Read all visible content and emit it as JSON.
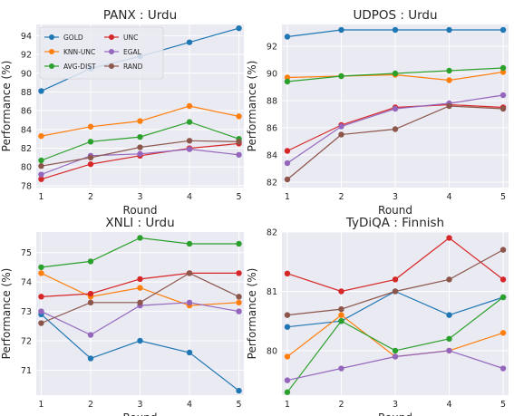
{
  "chart_data": [
    {
      "type": "line",
      "title": "PANX : Urdu",
      "xlabel": "Round",
      "ylabel": "Performance (%)",
      "x": [
        1,
        2,
        3,
        4,
        5
      ],
      "ylim": [
        77.8,
        95.2
      ],
      "yticks": [
        78,
        80,
        82,
        84,
        86,
        88,
        90,
        92,
        94
      ],
      "grid": true,
      "legend": "top-left",
      "series": [
        {
          "name": "GOLD",
          "color": "#1f77b4",
          "values": [
            88.1,
            90.5,
            91.8,
            93.3,
            94.8
          ]
        },
        {
          "name": "KNN-UNC",
          "color": "#ff7f0e",
          "values": [
            83.3,
            84.3,
            84.9,
            86.5,
            85.4
          ]
        },
        {
          "name": "AVG-DIST",
          "color": "#2ca02c",
          "values": [
            80.7,
            82.7,
            83.2,
            84.8,
            83.0
          ]
        },
        {
          "name": "UNC",
          "color": "#d62728",
          "values": [
            78.7,
            80.3,
            81.2,
            82.0,
            82.5
          ]
        },
        {
          "name": "EGAL",
          "color": "#9467bd",
          "values": [
            79.2,
            81.2,
            81.4,
            81.9,
            81.3
          ]
        },
        {
          "name": "RAND",
          "color": "#8c564b",
          "values": [
            80.1,
            81.0,
            82.1,
            82.8,
            82.7
          ]
        }
      ]
    },
    {
      "type": "line",
      "title": "UDPOS : Urdu",
      "xlabel": "Round",
      "ylabel": "Performance (%)",
      "x": [
        1,
        2,
        3,
        4,
        5
      ],
      "ylim": [
        81.6,
        93.6
      ],
      "yticks": [
        82,
        84,
        86,
        88,
        90,
        92
      ],
      "grid": true,
      "series": [
        {
          "name": "GOLD",
          "color": "#1f77b4",
          "values": [
            92.7,
            93.2,
            93.2,
            93.2,
            93.2
          ]
        },
        {
          "name": "KNN-UNC",
          "color": "#ff7f0e",
          "values": [
            89.7,
            89.8,
            89.9,
            89.5,
            90.1
          ]
        },
        {
          "name": "AVG-DIST",
          "color": "#2ca02c",
          "values": [
            89.4,
            89.8,
            90.0,
            90.2,
            90.4
          ]
        },
        {
          "name": "UNC",
          "color": "#d62728",
          "values": [
            84.3,
            86.2,
            87.5,
            87.7,
            87.5
          ]
        },
        {
          "name": "EGAL",
          "color": "#9467bd",
          "values": [
            83.4,
            86.1,
            87.4,
            87.8,
            88.4
          ]
        },
        {
          "name": "RAND",
          "color": "#8c564b",
          "values": [
            82.2,
            85.5,
            85.9,
            87.6,
            87.4
          ]
        }
      ]
    },
    {
      "type": "line",
      "title": "XNLI : Urdu",
      "xlabel": "Round",
      "ylabel": "Performance (%)",
      "x": [
        1,
        2,
        3,
        4,
        5
      ],
      "ylim": [
        70.15,
        75.7
      ],
      "yticks": [
        71,
        72,
        73,
        74,
        75
      ],
      "grid": true,
      "series": [
        {
          "name": "GOLD",
          "color": "#1f77b4",
          "values": [
            72.9,
            71.4,
            72.0,
            71.6,
            70.3
          ]
        },
        {
          "name": "KNN-UNC",
          "color": "#ff7f0e",
          "values": [
            74.3,
            73.5,
            73.8,
            73.2,
            73.3
          ]
        },
        {
          "name": "AVG-DIST",
          "color": "#2ca02c",
          "values": [
            74.5,
            74.7,
            75.5,
            75.3,
            75.3
          ]
        },
        {
          "name": "UNC",
          "color": "#d62728",
          "values": [
            73.5,
            73.6,
            74.1,
            74.3,
            74.3
          ]
        },
        {
          "name": "EGAL",
          "color": "#9467bd",
          "values": [
            73.0,
            72.2,
            73.2,
            73.3,
            73.0
          ]
        },
        {
          "name": "RAND",
          "color": "#8c564b",
          "values": [
            72.6,
            73.3,
            73.3,
            74.3,
            73.5
          ]
        }
      ]
    },
    {
      "type": "line",
      "title": "TyDiQA : Finnish",
      "xlabel": "Round",
      "ylabel": "Performance (%)",
      "x": [
        1,
        2,
        3,
        4,
        5
      ],
      "ylim": [
        79.25,
        82.0
      ],
      "yticks": [
        80,
        81,
        82
      ],
      "grid": true,
      "series": [
        {
          "name": "GOLD",
          "color": "#1f77b4",
          "values": [
            80.4,
            80.5,
            81.0,
            80.6,
            80.9
          ]
        },
        {
          "name": "KNN-UNC",
          "color": "#ff7f0e",
          "values": [
            79.9,
            80.6,
            79.9,
            80.0,
            80.3
          ]
        },
        {
          "name": "AVG-DIST",
          "color": "#2ca02c",
          "values": [
            79.3,
            80.5,
            80.0,
            80.2,
            80.9
          ]
        },
        {
          "name": "UNC",
          "color": "#d62728",
          "values": [
            81.3,
            81.0,
            81.2,
            81.9,
            81.2
          ]
        },
        {
          "name": "EGAL",
          "color": "#9467bd",
          "values": [
            79.5,
            79.7,
            79.9,
            80.0,
            79.7
          ]
        },
        {
          "name": "RAND",
          "color": "#8c564b",
          "values": [
            80.6,
            80.7,
            81.0,
            81.2,
            81.7
          ]
        }
      ]
    }
  ]
}
